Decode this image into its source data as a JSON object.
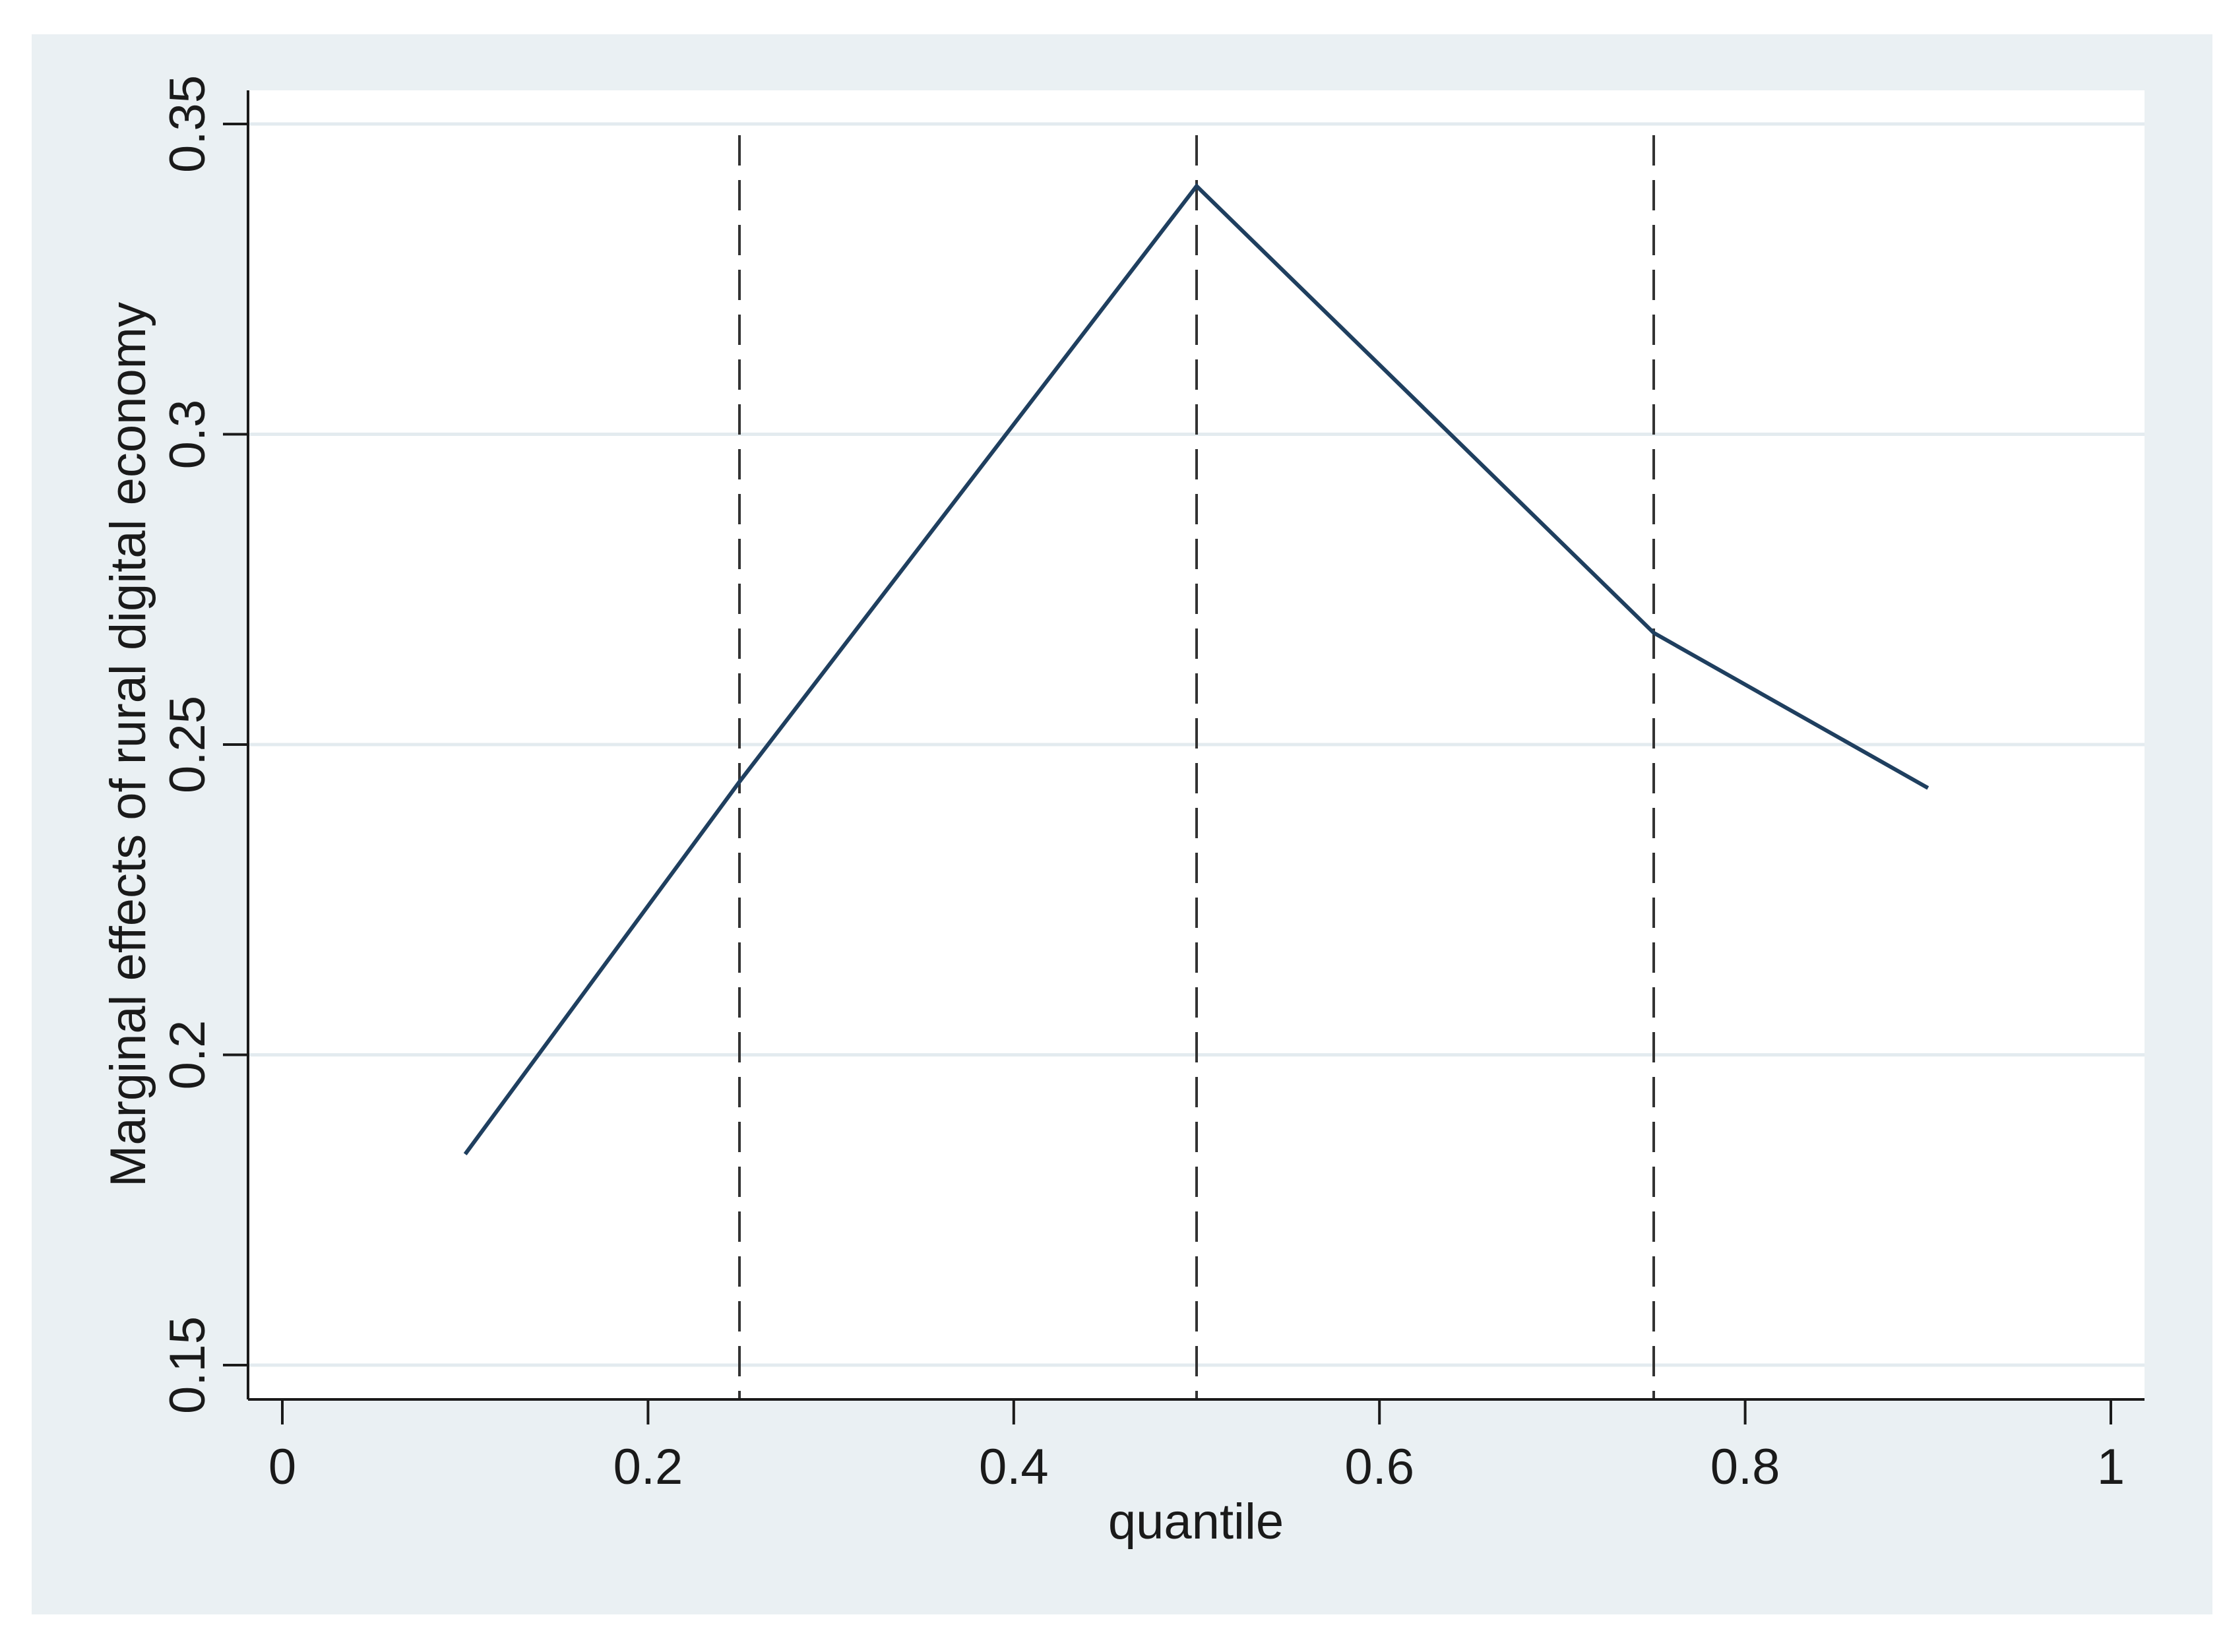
{
  "chart_data": {
    "type": "line",
    "title": "",
    "xlabel": "quantile",
    "ylabel": "Marginal effects of rural digital economy",
    "xlim": [
      0,
      1
    ],
    "ylim": [
      0.15,
      0.35
    ],
    "x_ticks": [
      0,
      0.2,
      0.4,
      0.6,
      0.8,
      1
    ],
    "x_tick_labels": [
      "0",
      "0.2",
      "0.4",
      "0.6",
      "0.8",
      "1"
    ],
    "y_ticks": [
      0.15,
      0.2,
      0.25,
      0.3,
      0.35
    ],
    "y_tick_labels": [
      "0.15",
      "0.2",
      "0.25",
      "0.3",
      "0.35"
    ],
    "grid": true,
    "series": [
      {
        "x": [
          0.1,
          0.25,
          0.5,
          0.75,
          0.9
        ],
        "y": [
          0.184,
          0.244,
          0.34,
          0.268,
          0.243
        ],
        "color": "#1f3f5f"
      }
    ],
    "reference_lines": {
      "orientation": "vertical",
      "style": "dashed",
      "x": [
        0.25,
        0.5,
        0.75
      ]
    },
    "colors": {
      "outer_background": "#eaf0f3",
      "plot_background": "#ffffff",
      "gridline": "#e3ebef",
      "axis": "#1a1a1a",
      "reference_line": "#333333"
    }
  }
}
